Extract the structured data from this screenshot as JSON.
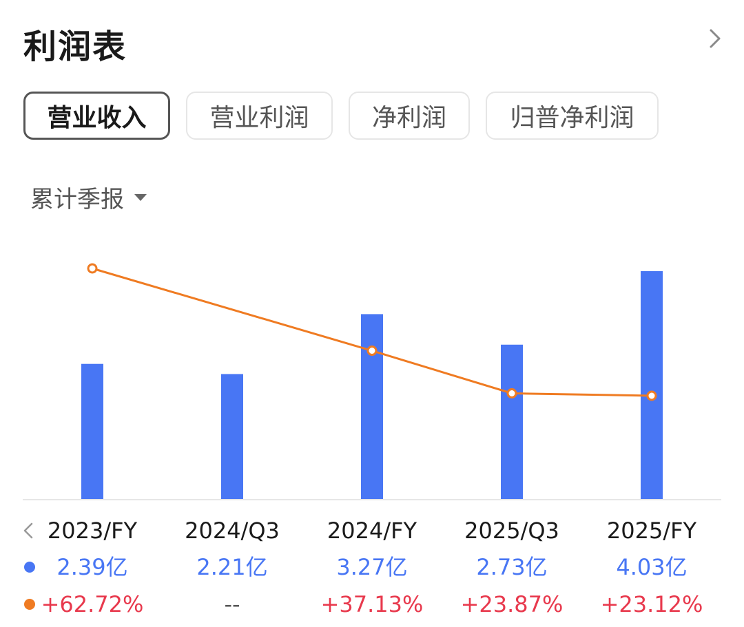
{
  "header": {
    "title": "利润表"
  },
  "tabs": [
    {
      "label": "营业收入",
      "active": true
    },
    {
      "label": "营业利润",
      "active": false
    },
    {
      "label": "净利润",
      "active": false
    },
    {
      "label": "归普净利润",
      "active": false
    }
  ],
  "period_selector": {
    "label": "累计季报"
  },
  "colors": {
    "bar": "#4876f4",
    "line": "#ef7b22",
    "revenue_text": "#4876f4",
    "growth_text": "#e8394d",
    "neutral_text": "#555555"
  },
  "chart_data": {
    "type": "bar",
    "categories": [
      "2023/FY",
      "2024/Q3",
      "2024/FY",
      "2025/Q3",
      "2025/FY"
    ],
    "series": [
      {
        "values": [
          2.39,
          2.21,
          3.27,
          2.73,
          4.03
        ],
        "labels": [
          "2.39亿",
          "2.21亿",
          "3.27亿",
          "2.73亿",
          "4.03亿"
        ],
        "kind": "bar"
      },
      {
        "values": [
          62.72,
          null,
          37.13,
          23.87,
          23.12
        ],
        "labels": [
          "+62.72%",
          "--",
          "+37.13%",
          "+23.87%",
          "+23.12%"
        ],
        "kind": "line"
      }
    ],
    "ylim": [
      0,
      4.03
    ],
    "grid": false,
    "legend": "left"
  }
}
